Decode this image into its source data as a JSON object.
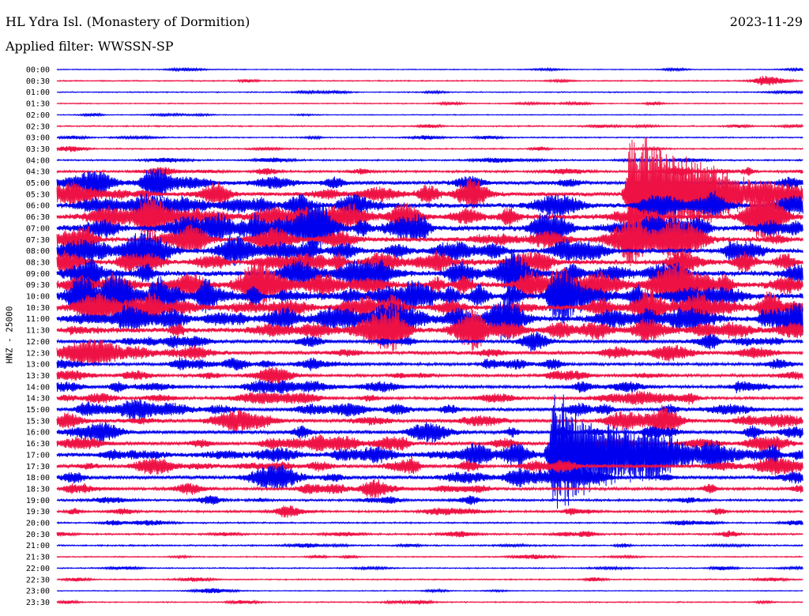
{
  "header": {
    "station": "HL Ydra Isl. (Monastery of Dormition)",
    "date": "2023-11-29",
    "filter": "Applied filter: WWSSN-SP"
  },
  "chart_data": {
    "type": "helicorder",
    "ylabel": "HNZ - 25000",
    "colors": [
      "#0000ee",
      "#ee1144"
    ],
    "times": [
      "00:00",
      "00:30",
      "01:00",
      "01:30",
      "02:00",
      "02:30",
      "03:00",
      "03:30",
      "04:00",
      "04:30",
      "05:00",
      "05:30",
      "06:00",
      "06:30",
      "07:00",
      "07:30",
      "08:00",
      "08:30",
      "09:00",
      "09:30",
      "10:00",
      "10:30",
      "11:00",
      "11:30",
      "12:00",
      "12:30",
      "13:00",
      "13:30",
      "14:00",
      "14:30",
      "15:00",
      "15:30",
      "16:00",
      "16:30",
      "17:00",
      "17:30",
      "18:00",
      "18:30",
      "19:00",
      "19:30",
      "20:00",
      "20:30",
      "21:00",
      "21:30",
      "22:00",
      "22:30",
      "23:00",
      "23:30"
    ],
    "noise_level": [
      0.6,
      0.8,
      0.7,
      0.7,
      0.6,
      0.9,
      0.8,
      0.9,
      1.0,
      1.5,
      2.5,
      3.0,
      3.5,
      4.0,
      4.0,
      3.5,
      3.5,
      3.5,
      4.0,
      4.5,
      4.5,
      4.0,
      4.0,
      3.5,
      2.5,
      2.5,
      2.0,
      2.0,
      2.0,
      2.0,
      2.5,
      2.5,
      2.5,
      2.5,
      3.0,
      2.5,
      2.5,
      2.0,
      1.5,
      1.5,
      1.0,
      1.2,
      1.0,
      0.8,
      0.8,
      0.8,
      0.6,
      0.8
    ],
    "events": [
      {
        "trace": "05:30",
        "minute": 23.0,
        "amplitude": 95,
        "duration": 3
      },
      {
        "trace": "17:00",
        "minute": 19.9,
        "amplitude": 90,
        "duration": 3
      },
      {
        "trace": "10:00",
        "minute": 19.8,
        "amplitude": 22,
        "duration": 1.2
      },
      {
        "trace": "11:00",
        "minute": 28.3,
        "amplitude": 10,
        "duration": 1
      },
      {
        "trace": "13:00",
        "minute": 17.2,
        "amplitude": 8,
        "duration": 1
      },
      {
        "trace": "15:30",
        "minute": 24.3,
        "amplitude": 8,
        "duration": 0.5
      },
      {
        "trace": "08:30",
        "minute": 15.1,
        "amplitude": 8,
        "duration": 1
      },
      {
        "trace": "07:00",
        "minute": 7.4,
        "amplitude": 8,
        "duration": 0.8
      },
      {
        "trace": "13:00",
        "minute": 10.2,
        "amplitude": 7,
        "duration": 0.8
      },
      {
        "trace": "14:00",
        "minute": 10.0,
        "amplitude": 7,
        "duration": 0.8
      },
      {
        "trace": "11:00",
        "minute": 2.6,
        "amplitude": 8,
        "duration": 1
      },
      {
        "trace": "10:00",
        "minute": 9.0,
        "amplitude": 7,
        "duration": 1
      },
      {
        "trace": "05:00",
        "minute": 3.5,
        "amplitude": 6,
        "duration": 1.5
      },
      {
        "trace": "05:30",
        "minute": 0.5,
        "amplitude": 12,
        "duration": 1
      },
      {
        "trace": "06:00",
        "minute": 2.2,
        "amplitude": 6,
        "duration": 0.8
      },
      {
        "trace": "14:00",
        "minute": 27.3,
        "amplitude": 6,
        "duration": 0.6
      },
      {
        "trace": "18:30",
        "minute": 1.1,
        "amplitude": 6,
        "duration": 0.5
      },
      {
        "trace": "09:00",
        "minute": 1.4,
        "amplitude": 7,
        "duration": 1
      },
      {
        "trace": "09:30",
        "minute": 4.2,
        "amplitude": 6,
        "duration": 0.8
      },
      {
        "trace": "11:30",
        "minute": 0.5,
        "amplitude": 5,
        "duration": 1
      }
    ]
  }
}
